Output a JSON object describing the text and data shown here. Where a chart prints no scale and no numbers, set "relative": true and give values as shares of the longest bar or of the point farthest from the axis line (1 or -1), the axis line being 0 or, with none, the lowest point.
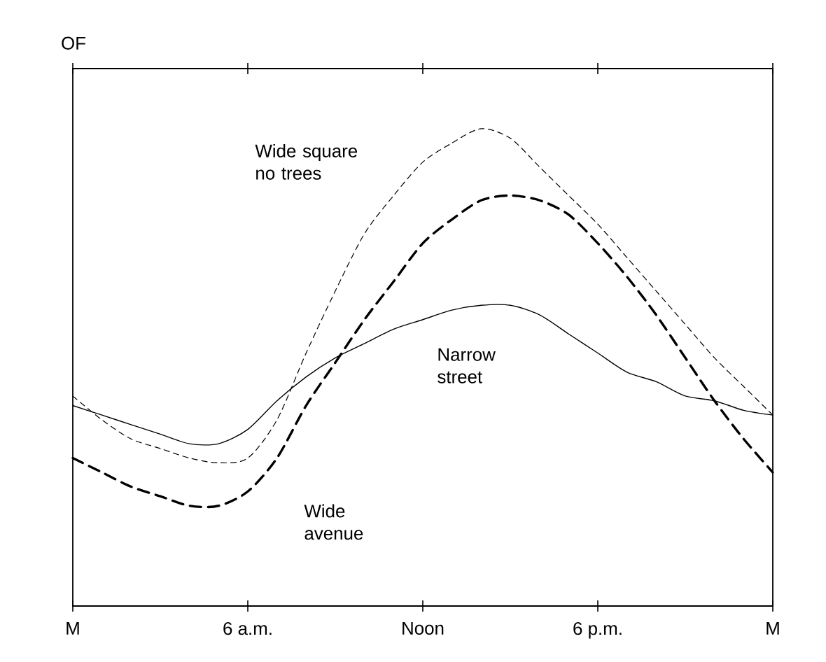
{
  "chart_data": {
    "type": "line",
    "relative": true,
    "ylabel": "OF",
    "categories": [
      "M",
      null,
      null,
      null,
      null,
      null,
      "6 a.m.",
      null,
      null,
      null,
      null,
      null,
      "Noon",
      null,
      null,
      null,
      null,
      null,
      "6 p.m.",
      null,
      null,
      null,
      null,
      null,
      "M"
    ],
    "series": [
      {
        "name": "Wide square no trees",
        "color": "#000000",
        "line_style": "dashed",
        "values": [
          0.44,
          0.39,
          0.35,
          0.33,
          0.31,
          0.3,
          0.31,
          0.39,
          0.53,
          0.66,
          0.78,
          0.86,
          0.93,
          0.97,
          1.0,
          0.98,
          0.92,
          0.86,
          0.8,
          0.73,
          0.66,
          0.59,
          0.52,
          0.46,
          0.4
        ]
      },
      {
        "name": "Wide avenue",
        "color": "#000000",
        "line_style": "dashed",
        "values": [
          0.31,
          0.28,
          0.25,
          0.23,
          0.21,
          0.21,
          0.24,
          0.31,
          0.42,
          0.51,
          0.6,
          0.68,
          0.76,
          0.81,
          0.85,
          0.86,
          0.85,
          0.82,
          0.76,
          0.69,
          0.61,
          0.52,
          0.43,
          0.35,
          0.28
        ]
      },
      {
        "name": "Narrow street",
        "color": "#000000",
        "line_style": "solid",
        "values": [
          0.42,
          0.4,
          0.38,
          0.36,
          0.34,
          0.34,
          0.37,
          0.43,
          0.48,
          0.52,
          0.55,
          0.58,
          0.6,
          0.62,
          0.63,
          0.63,
          0.61,
          0.57,
          0.53,
          0.49,
          0.47,
          0.44,
          0.43,
          0.41,
          0.4
        ]
      }
    ]
  }
}
